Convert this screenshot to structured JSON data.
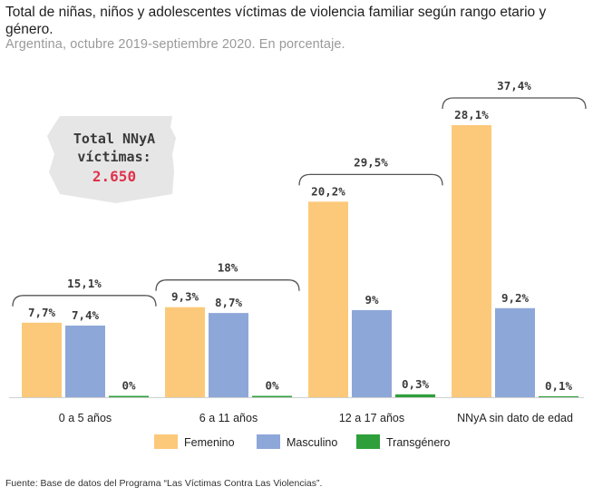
{
  "header": {
    "title": "Total de niñas, niños y adolescentes víctimas de violencia familiar según rango etario y género.",
    "subtitle": "Argentina, octubre 2019-septiembre 2020. En porcentaje."
  },
  "callout": {
    "line1": "Total NNyA",
    "line2": "víctimas:",
    "value": "2.650",
    "value_color": "#e0314b"
  },
  "source": "Fuente: Base de datos del Programa “Las Víctimas Contra Las Violencias”.",
  "colors": {
    "Femenino": "#fcc97a",
    "Masculino": "#8ea7d9",
    "Transgénero": "#2e9f3a"
  },
  "chart_data": {
    "type": "bar",
    "categories": [
      "0 a 5 años",
      "6 a 11 años",
      "12 a 17 años",
      "NNyA sin dato de edad"
    ],
    "series": [
      {
        "name": "Femenino",
        "values": [
          7.7,
          9.3,
          20.2,
          28.1
        ],
        "labels": [
          "7,7%",
          "9,3%",
          "20,2%",
          "28,1%"
        ]
      },
      {
        "name": "Masculino",
        "values": [
          7.4,
          8.7,
          9,
          9.2
        ],
        "labels": [
          "7,4%",
          "8,7%",
          "9%",
          "9,2%"
        ]
      },
      {
        "name": "Transgénero",
        "values": [
          0,
          0,
          0.3,
          0.1
        ],
        "labels": [
          "0%",
          "0%",
          "0,3%",
          "0,1%"
        ]
      }
    ],
    "group_totals": [
      "15,1%",
      "18%",
      "29,5%",
      "37,4%"
    ],
    "ylim": [
      0,
      28.1
    ],
    "legend_position": "bottom",
    "grid": false
  }
}
